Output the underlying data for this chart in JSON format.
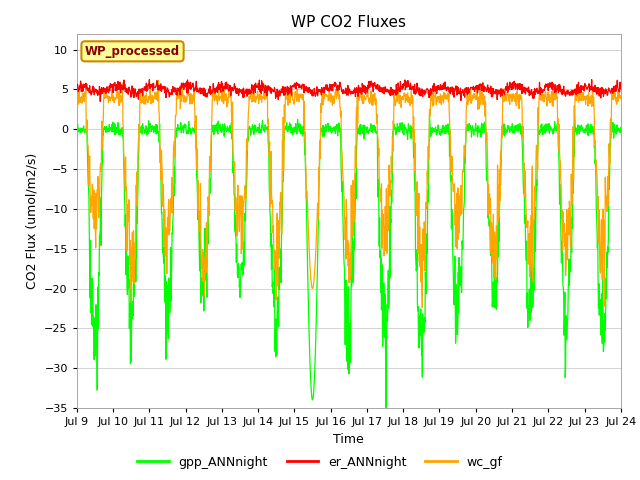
{
  "title": "WP CO2 Fluxes",
  "xlabel": "Time",
  "ylabel": "CO2 Flux (umol/m2/s)",
  "ylim": [
    -35,
    12
  ],
  "yticks": [
    -35,
    -30,
    -25,
    -20,
    -15,
    -10,
    -5,
    0,
    5,
    10
  ],
  "n_days": 15,
  "start_day": 9,
  "colors": {
    "gpp": "#00FF00",
    "er": "#FF0000",
    "wc": "#FFA500"
  },
  "legend_labels": [
    "gpp_ANNnight",
    "er_ANNnight",
    "wc_gf"
  ],
  "watermark_text": "WP_processed",
  "watermark_bg": "#FFFF99",
  "watermark_border": "#CC8800",
  "watermark_fg": "#880000",
  "plot_bg": "#FFFFFF",
  "grid_color": "#CCCCCC",
  "title_fontsize": 11,
  "axis_label_fontsize": 9,
  "tick_label_fontsize": 8,
  "seed": 42
}
